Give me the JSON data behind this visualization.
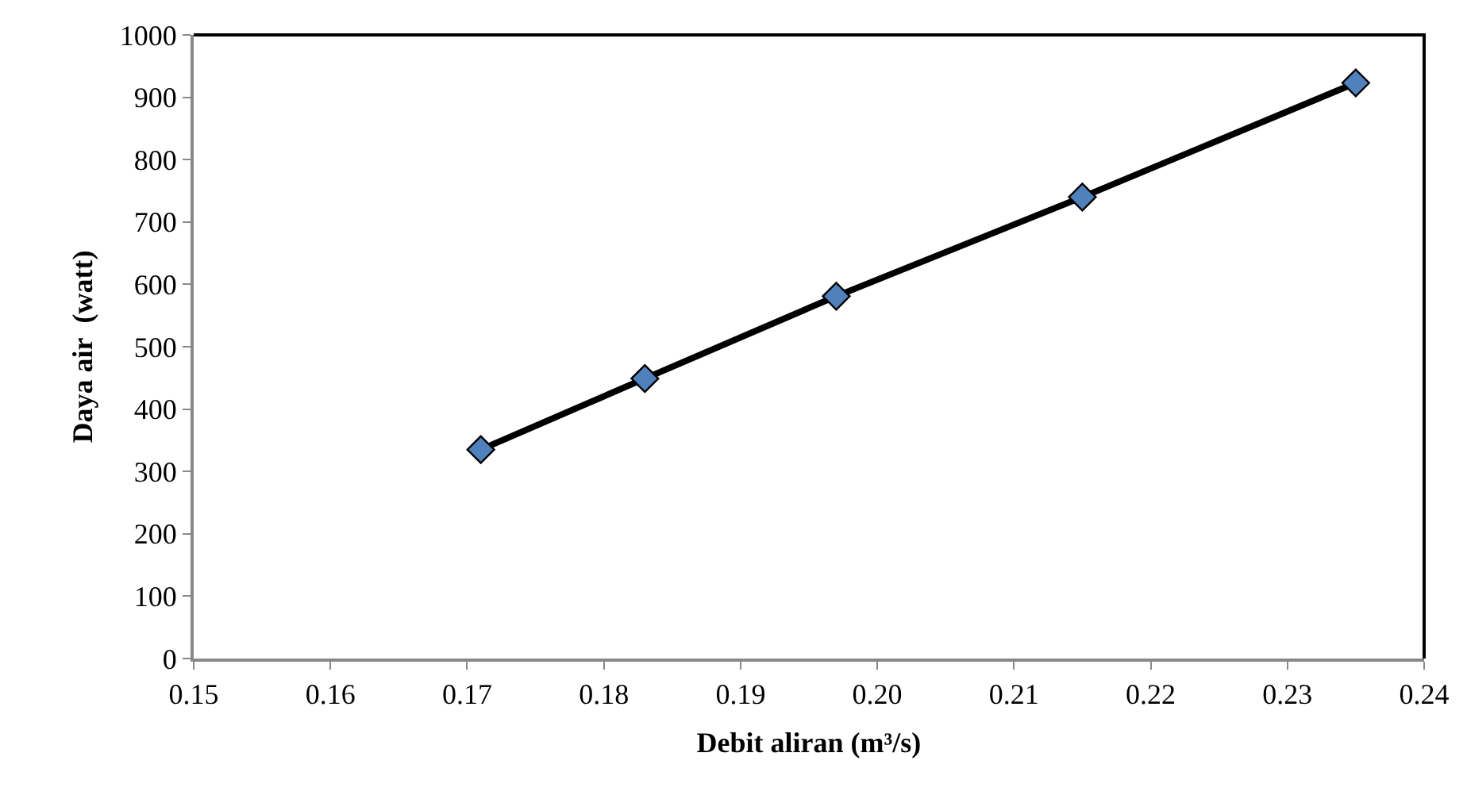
{
  "chart_data": {
    "type": "line",
    "xlabel": "Debit aliran (m³/s)",
    "ylabel": "Daya air  (watt)",
    "x": [
      0.171,
      0.183,
      0.197,
      0.215,
      0.235
    ],
    "series": [
      {
        "color": "#000000",
        "colors": [
          "#4f81bd",
          "#4f81bd",
          "#4f81bd",
          "#4f81bd",
          "#4f81bd"
        ],
        "values": [
          335,
          449,
          581,
          740,
          923
        ]
      }
    ],
    "xlim": [
      0.15,
      0.24
    ],
    "xticks": [
      0.15,
      0.16,
      0.17,
      0.18,
      0.19,
      {
        "value": 0.2,
        "label": "0.20"
      },
      0.21,
      0.22,
      0.23,
      0.24
    ],
    "ylim": [
      0,
      1000
    ],
    "yticks": [
      0,
      100,
      200,
      300,
      400,
      500,
      600,
      700,
      800,
      900,
      1000
    ],
    "marker": "diamond",
    "line_style": "solid"
  }
}
